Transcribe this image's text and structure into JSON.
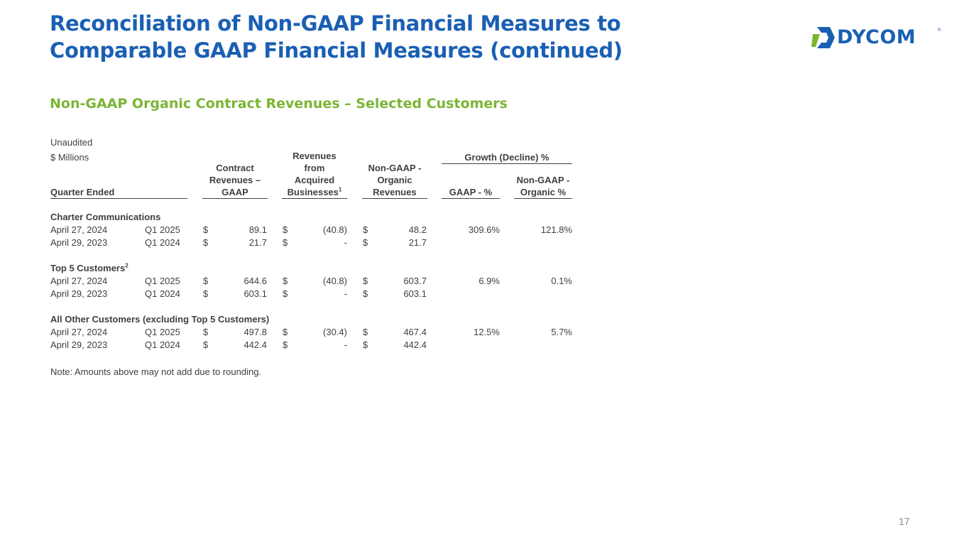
{
  "title": {
    "line1": "Reconciliation of Non-GAAP Financial Measures to",
    "line2": "Comparable GAAP Financial Measures (continued)"
  },
  "logo": {
    "text": "DYCOM",
    "mark": "®",
    "icon": "dycom-chevron-logo"
  },
  "subtitle": "Non-GAAP Organic Contract Revenues – Selected Customers",
  "table": {
    "unaudited": "Unaudited",
    "units": "$ Millions",
    "headers": {
      "quarter_ended": "Quarter Ended",
      "contract_line1": "Contract",
      "contract_line2": "Revenues –",
      "contract_line3": "GAAP",
      "acquired_line1": "Revenues",
      "acquired_line2": "from",
      "acquired_line3": "Acquired",
      "acquired_line4": "Businesses",
      "acquired_sup": "1",
      "organic_line1": "Non-GAAP -",
      "organic_line2": "Organic",
      "organic_line3": "Revenues",
      "growth": "Growth (Decline) %",
      "gaap_pct": "GAAP - %",
      "organic_pct_line1": "Non-GAAP -",
      "organic_pct_line2": "Organic %"
    },
    "sections": [
      {
        "name": "Charter Communications",
        "sup": "",
        "rows": [
          {
            "date": "April 27, 2024",
            "quarter": "Q1 2025",
            "cur1": "$",
            "contract": "89.1",
            "cur2": "$",
            "acquired": "(40.8)",
            "cur3": "$",
            "organic": "48.2",
            "gaap_pct": "309.6%",
            "organic_pct": "121.8%"
          },
          {
            "date": "April 29, 2023",
            "quarter": "Q1 2024",
            "cur1": "$",
            "contract": "21.7",
            "cur2": "$",
            "acquired": "-",
            "cur3": "$",
            "organic": "21.7",
            "gaap_pct": "",
            "organic_pct": ""
          }
        ]
      },
      {
        "name": "Top 5 Customers",
        "sup": "2",
        "rows": [
          {
            "date": "April 27, 2024",
            "quarter": "Q1 2025",
            "cur1": "$",
            "contract": "644.6",
            "cur2": "$",
            "acquired": "(40.8)",
            "cur3": "$",
            "organic": "603.7",
            "gaap_pct": "6.9%",
            "organic_pct": "0.1%"
          },
          {
            "date": "April 29, 2023",
            "quarter": "Q1 2024",
            "cur1": "$",
            "contract": "603.1",
            "cur2": "$",
            "acquired": "-",
            "cur3": "$",
            "organic": "603.1",
            "gaap_pct": "",
            "organic_pct": ""
          }
        ]
      },
      {
        "name": "All Other Customers (excluding Top 5 Customers)",
        "sup": "",
        "rows": [
          {
            "date": "April 27, 2024",
            "quarter": "Q1 2025",
            "cur1": "$",
            "contract": "497.8",
            "cur2": "$",
            "acquired": "(30.4)",
            "cur3": "$",
            "organic": "467.4",
            "gaap_pct": "12.5%",
            "organic_pct": "5.7%"
          },
          {
            "date": "April 29, 2023",
            "quarter": "Q1 2024",
            "cur1": "$",
            "contract": "442.4",
            "cur2": "$",
            "acquired": "-",
            "cur3": "$",
            "organic": "442.4",
            "gaap_pct": "",
            "organic_pct": ""
          }
        ]
      }
    ]
  },
  "note": "Note: Amounts above may not add due to rounding.",
  "page_number": "17",
  "colors": {
    "title_blue": "#1a5fb4",
    "accent_green": "#7ab533",
    "text": "#404040"
  }
}
